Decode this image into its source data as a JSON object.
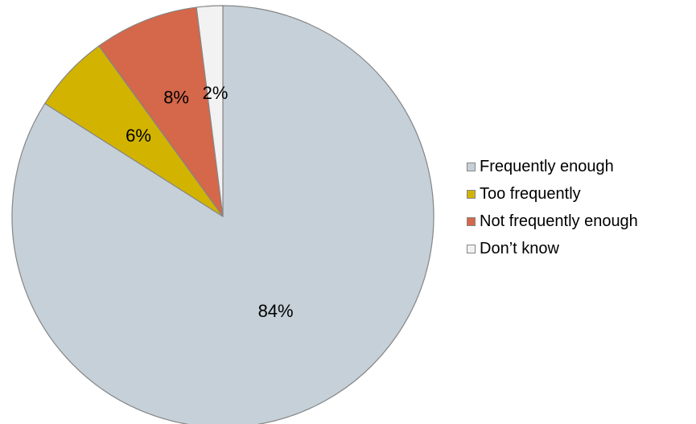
{
  "chart_data": {
    "type": "pie",
    "title": "",
    "categories": [
      "Frequently enough",
      "Too frequently",
      "Not frequently enough",
      "Don’t know"
    ],
    "values": [
      84,
      6,
      8,
      2
    ],
    "data_labels": [
      "84%",
      "6%",
      "8%",
      "2%"
    ],
    "colors": [
      "#c5d0d8",
      "#d2b400",
      "#d5674a",
      "#f2f2f2"
    ],
    "start_angle": "12 o'clock",
    "direction": "clockwise",
    "legend_position": "right"
  }
}
